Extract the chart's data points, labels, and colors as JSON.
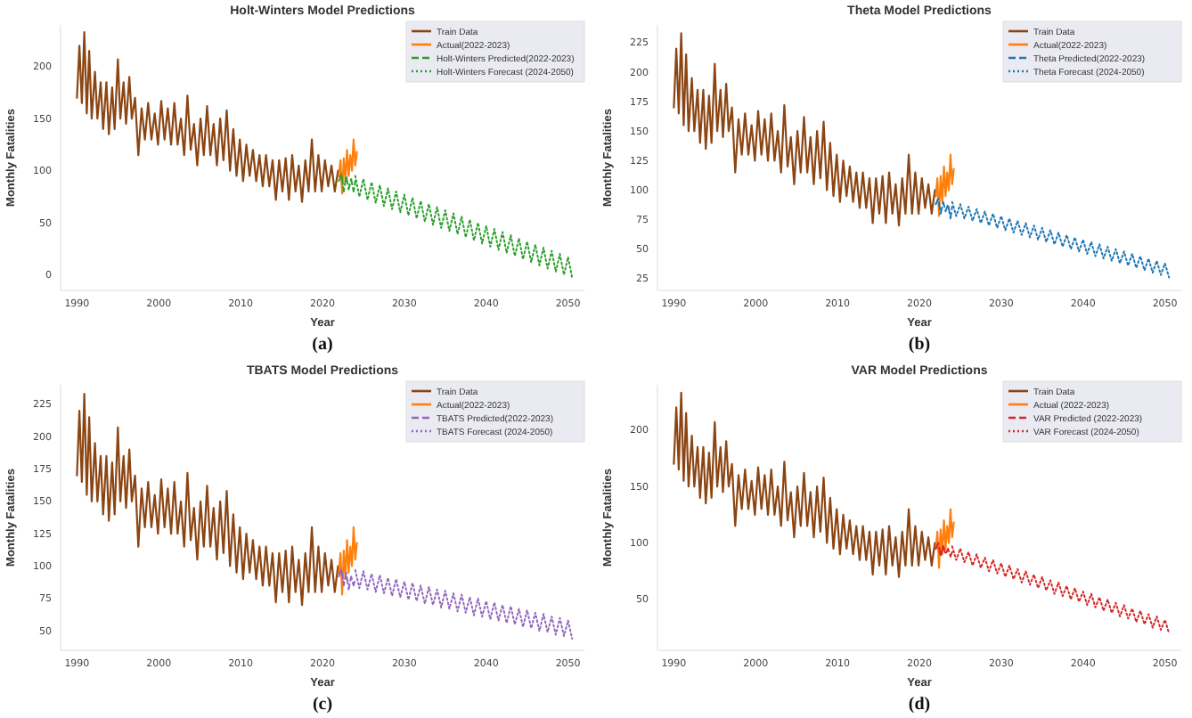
{
  "chart_data": [
    {
      "type": "line",
      "title": "Holt-Winters Model Predictions",
      "xlabel": "Year",
      "ylabel": "Monthly Fatalities",
      "annotations": [
        "(a)"
      ],
      "legend": "top right",
      "xlim": [
        1988,
        2052
      ],
      "xticks": [
        1990,
        2000,
        2010,
        2020,
        2030,
        2040,
        2050
      ],
      "ylim": [
        -15,
        240
      ],
      "yticks": [
        0,
        50,
        100,
        150,
        200
      ],
      "series": [
        {
          "name": "Train Data",
          "color": "#8b4513",
          "line_style": "solid",
          "x": [
            1990.0,
            1990.3,
            1990.6,
            1990.9,
            1991.2,
            1991.5,
            1991.8,
            1992.2,
            1992.5,
            1992.9,
            1993.2,
            1993.6,
            1993.9,
            1994.3,
            1994.6,
            1995.0,
            1995.3,
            1995.7,
            1996.0,
            1996.4,
            1996.7,
            1997.1,
            1997.5,
            1997.9,
            1998.3,
            1998.7,
            1999.1,
            1999.5,
            1999.9,
            2000.3,
            2000.7,
            2001.1,
            2001.5,
            2001.9,
            2002.3,
            2002.7,
            2003.1,
            2003.5,
            2003.9,
            2004.3,
            2004.7,
            2005.1,
            2005.5,
            2005.9,
            2006.3,
            2006.7,
            2007.1,
            2007.5,
            2007.9,
            2008.3,
            2008.7,
            2009.1,
            2009.5,
            2009.9,
            2010.3,
            2010.7,
            2011.1,
            2011.5,
            2011.9,
            2012.3,
            2012.7,
            2013.1,
            2013.5,
            2013.9,
            2014.3,
            2014.7,
            2015.1,
            2015.5,
            2015.9,
            2016.3,
            2016.7,
            2017.1,
            2017.5,
            2017.9,
            2018.3,
            2018.7,
            2019.1,
            2019.5,
            2019.9,
            2020.3,
            2020.7,
            2021.1,
            2021.5,
            2021.9,
            2022.0
          ],
          "values": [
            170,
            220,
            165,
            233,
            155,
            215,
            150,
            195,
            150,
            185,
            140,
            185,
            135,
            180,
            140,
            207,
            150,
            185,
            145,
            190,
            150,
            170,
            115,
            160,
            130,
            165,
            130,
            155,
            125,
            167,
            130,
            160,
            125,
            165,
            125,
            150,
            115,
            172,
            120,
            145,
            105,
            150,
            115,
            162,
            115,
            145,
            105,
            150,
            110,
            158,
            100,
            140,
            95,
            130,
            90,
            125,
            95,
            120,
            90,
            115,
            85,
            115,
            85,
            110,
            72,
            110,
            80,
            112,
            72,
            115,
            80,
            105,
            70,
            110,
            80,
            130,
            80,
            115,
            80,
            110,
            85,
            105,
            80,
            100,
            95
          ]
        },
        {
          "name": "Actual(2022-2023)",
          "color": "#ff7f0e",
          "line_style": "solid",
          "x": [
            2022.0,
            2022.2,
            2022.4,
            2022.6,
            2022.8,
            2023.0,
            2023.2,
            2023.4,
            2023.6,
            2023.8,
            2024.0,
            2024.2
          ],
          "values": [
            95,
            110,
            78,
            112,
            90,
            120,
            95,
            115,
            100,
            130,
            105,
            118
          ]
        },
        {
          "name": "Holt-Winters Predicted(2022-2023)",
          "color": "#2ca02c",
          "line_style": "dashed",
          "x": [
            2022.0,
            2022.3,
            2022.6,
            2022.9,
            2023.2,
            2023.5,
            2023.8,
            2024.0
          ],
          "values": [
            90,
            97,
            80,
            95,
            82,
            92,
            80,
            90
          ]
        },
        {
          "name": "Holt-Winters Forecast (2024-2050)",
          "color": "#2ca02c",
          "line_style": "dotted",
          "x": [
            2024,
            2024.5,
            2025,
            2025.5,
            2026,
            2026.5,
            2027,
            2027.5,
            2028,
            2028.5,
            2029,
            2029.5,
            2030,
            2030.5,
            2031,
            2031.5,
            2032,
            2032.5,
            2033,
            2033.5,
            2034,
            2034.5,
            2035,
            2035.5,
            2036,
            2036.5,
            2037,
            2037.5,
            2038,
            2038.5,
            2039,
            2039.5,
            2040,
            2040.5,
            2041,
            2041.5,
            2042,
            2042.5,
            2043,
            2043.5,
            2044,
            2044.5,
            2045,
            2045.5,
            2046,
            2046.5,
            2047,
            2047.5,
            2048,
            2048.5,
            2049,
            2049.5,
            2050,
            2050.5
          ],
          "values": [
            95,
            75,
            92,
            72,
            89,
            69,
            86,
            66,
            83,
            63,
            80,
            60,
            77,
            57,
            74,
            54,
            71,
            51,
            68,
            48,
            65,
            45,
            62,
            42,
            59,
            39,
            56,
            36,
            53,
            33,
            50,
            30,
            47,
            27,
            44,
            24,
            41,
            21,
            38,
            18,
            35,
            15,
            32,
            12,
            29,
            9,
            26,
            6,
            23,
            3,
            20,
            0,
            17,
            -3
          ]
        }
      ]
    },
    {
      "type": "line",
      "title": "Theta Model Predictions",
      "xlabel": "Year",
      "ylabel": "Monthly Fatalities",
      "annotations": [
        "(b)"
      ],
      "legend": "top right",
      "xlim": [
        1988,
        2052
      ],
      "xticks": [
        1990,
        2000,
        2010,
        2020,
        2030,
        2040,
        2050
      ],
      "ylim": [
        15,
        240
      ],
      "yticks": [
        25,
        50,
        75,
        100,
        125,
        150,
        175,
        200,
        225
      ],
      "series": [
        {
          "name": "Train Data",
          "color": "#8b4513",
          "line_style": "solid",
          "x": [
            1990.0,
            1990.3,
            1990.6,
            1990.9,
            1991.2,
            1991.5,
            1991.8,
            1992.2,
            1992.5,
            1992.9,
            1993.2,
            1993.6,
            1993.9,
            1994.3,
            1994.6,
            1995.0,
            1995.3,
            1995.7,
            1996.0,
            1996.4,
            1996.7,
            1997.1,
            1997.5,
            1997.9,
            1998.3,
            1998.7,
            1999.1,
            1999.5,
            1999.9,
            2000.3,
            2000.7,
            2001.1,
            2001.5,
            2001.9,
            2002.3,
            2002.7,
            2003.1,
            2003.5,
            2003.9,
            2004.3,
            2004.7,
            2005.1,
            2005.5,
            2005.9,
            2006.3,
            2006.7,
            2007.1,
            2007.5,
            2007.9,
            2008.3,
            2008.7,
            2009.1,
            2009.5,
            2009.9,
            2010.3,
            2010.7,
            2011.1,
            2011.5,
            2011.9,
            2012.3,
            2012.7,
            2013.1,
            2013.5,
            2013.9,
            2014.3,
            2014.7,
            2015.1,
            2015.5,
            2015.9,
            2016.3,
            2016.7,
            2017.1,
            2017.5,
            2017.9,
            2018.3,
            2018.7,
            2019.1,
            2019.5,
            2019.9,
            2020.3,
            2020.7,
            2021.1,
            2021.5,
            2021.9,
            2022.0
          ],
          "values": [
            170,
            220,
            165,
            233,
            155,
            215,
            150,
            195,
            150,
            185,
            140,
            185,
            135,
            180,
            140,
            207,
            150,
            185,
            145,
            190,
            150,
            170,
            115,
            160,
            130,
            165,
            130,
            155,
            125,
            167,
            130,
            160,
            125,
            165,
            125,
            150,
            115,
            172,
            120,
            145,
            105,
            150,
            115,
            162,
            115,
            145,
            105,
            150,
            110,
            158,
            100,
            140,
            95,
            130,
            90,
            125,
            95,
            120,
            90,
            115,
            85,
            115,
            85,
            110,
            72,
            110,
            80,
            112,
            72,
            115,
            80,
            105,
            70,
            110,
            80,
            130,
            80,
            115,
            80,
            110,
            85,
            105,
            80,
            100,
            95
          ]
        },
        {
          "name": "Actual(2022-2023)",
          "color": "#ff7f0e",
          "line_style": "solid",
          "x": [
            2022.0,
            2022.2,
            2022.4,
            2022.6,
            2022.8,
            2023.0,
            2023.2,
            2023.4,
            2023.6,
            2023.8,
            2024.0,
            2024.2
          ],
          "values": [
            95,
            110,
            78,
            112,
            90,
            120,
            95,
            115,
            100,
            130,
            105,
            118
          ]
        },
        {
          "name": "Theta Predicted(2022-2023)",
          "color": "#1f77b4",
          "line_style": "dashed",
          "x": [
            2022.0,
            2022.3,
            2022.6,
            2022.9,
            2023.2,
            2023.5,
            2023.8,
            2024.0
          ],
          "values": [
            88,
            93,
            80,
            90,
            82,
            88,
            76,
            86
          ]
        },
        {
          "name": "Theta Forecast (2024-2050)",
          "color": "#1f77b4",
          "line_style": "dotted",
          "x": [
            2024,
            2024.5,
            2025,
            2025.5,
            2026,
            2026.5,
            2027,
            2027.5,
            2028,
            2028.5,
            2029,
            2029.5,
            2030,
            2030.5,
            2031,
            2031.5,
            2032,
            2032.5,
            2033,
            2033.5,
            2034,
            2034.5,
            2035,
            2035.5,
            2036,
            2036.5,
            2037,
            2037.5,
            2038,
            2038.5,
            2039,
            2039.5,
            2040,
            2040.5,
            2041,
            2041.5,
            2042,
            2042.5,
            2043,
            2043.5,
            2044,
            2044.5,
            2045,
            2045.5,
            2046,
            2046.5,
            2047,
            2047.5,
            2048,
            2048.5,
            2049,
            2049.5,
            2050,
            2050.5
          ],
          "values": [
            90,
            78,
            88,
            76,
            86,
            74,
            84,
            72,
            82,
            70,
            80,
            68,
            78,
            66,
            76,
            64,
            74,
            62,
            72,
            60,
            70,
            58,
            68,
            56,
            66,
            54,
            64,
            52,
            62,
            50,
            60,
            48,
            58,
            46,
            56,
            44,
            54,
            42,
            52,
            40,
            50,
            38,
            48,
            36,
            46,
            34,
            44,
            32,
            42,
            30,
            40,
            28,
            38,
            26
          ]
        }
      ]
    },
    {
      "type": "line",
      "title": "TBATS Model Predictions",
      "xlabel": "Year",
      "ylabel": "Monthly Fatalities",
      "annotations": [
        "(c)"
      ],
      "legend": "top right",
      "xlim": [
        1988,
        2052
      ],
      "xticks": [
        1990,
        2000,
        2010,
        2020,
        2030,
        2040,
        2050
      ],
      "ylim": [
        35,
        240
      ],
      "yticks": [
        50,
        75,
        100,
        125,
        150,
        175,
        200,
        225
      ],
      "series": [
        {
          "name": "Train Data",
          "color": "#8b4513",
          "line_style": "solid",
          "x": [
            1990.0,
            1990.3,
            1990.6,
            1990.9,
            1991.2,
            1991.5,
            1991.8,
            1992.2,
            1992.5,
            1992.9,
            1993.2,
            1993.6,
            1993.9,
            1994.3,
            1994.6,
            1995.0,
            1995.3,
            1995.7,
            1996.0,
            1996.4,
            1996.7,
            1997.1,
            1997.5,
            1997.9,
            1998.3,
            1998.7,
            1999.1,
            1999.5,
            1999.9,
            2000.3,
            2000.7,
            2001.1,
            2001.5,
            2001.9,
            2002.3,
            2002.7,
            2003.1,
            2003.5,
            2003.9,
            2004.3,
            2004.7,
            2005.1,
            2005.5,
            2005.9,
            2006.3,
            2006.7,
            2007.1,
            2007.5,
            2007.9,
            2008.3,
            2008.7,
            2009.1,
            2009.5,
            2009.9,
            2010.3,
            2010.7,
            2011.1,
            2011.5,
            2011.9,
            2012.3,
            2012.7,
            2013.1,
            2013.5,
            2013.9,
            2014.3,
            2014.7,
            2015.1,
            2015.5,
            2015.9,
            2016.3,
            2016.7,
            2017.1,
            2017.5,
            2017.9,
            2018.3,
            2018.7,
            2019.1,
            2019.5,
            2019.9,
            2020.3,
            2020.7,
            2021.1,
            2021.5,
            2021.9,
            2022.0
          ],
          "values": [
            170,
            220,
            165,
            233,
            155,
            215,
            150,
            195,
            150,
            185,
            140,
            185,
            135,
            180,
            140,
            207,
            150,
            185,
            145,
            190,
            150,
            170,
            115,
            160,
            130,
            165,
            130,
            155,
            125,
            167,
            130,
            160,
            125,
            165,
            125,
            150,
            115,
            172,
            120,
            145,
            105,
            150,
            115,
            162,
            115,
            145,
            105,
            150,
            110,
            158,
            100,
            140,
            95,
            130,
            90,
            125,
            95,
            120,
            90,
            115,
            85,
            115,
            85,
            110,
            72,
            110,
            80,
            112,
            72,
            115,
            80,
            105,
            70,
            110,
            80,
            130,
            80,
            115,
            80,
            110,
            85,
            105,
            80,
            100,
            95
          ]
        },
        {
          "name": "Actual(2022-2023)",
          "color": "#ff7f0e",
          "line_style": "solid",
          "x": [
            2022.0,
            2022.2,
            2022.4,
            2022.6,
            2022.8,
            2023.0,
            2023.2,
            2023.4,
            2023.6,
            2023.8,
            2024.0,
            2024.2
          ],
          "values": [
            95,
            110,
            78,
            112,
            90,
            120,
            95,
            115,
            100,
            130,
            105,
            118
          ]
        },
        {
          "name": "TBATS Predicted(2022-2023)",
          "color": "#9467bd",
          "line_style": "dashed",
          "x": [
            2022.0,
            2022.3,
            2022.6,
            2022.9,
            2023.2,
            2023.5,
            2023.8,
            2024.0
          ],
          "values": [
            92,
            98,
            85,
            95,
            82,
            92,
            85,
            90
          ]
        },
        {
          "name": "TBATS Forecast (2024-2050)",
          "color": "#9467bd",
          "line_style": "dotted",
          "x": [
            2024,
            2024.5,
            2025,
            2025.5,
            2026,
            2026.5,
            2027,
            2027.5,
            2028,
            2028.5,
            2029,
            2029.5,
            2030,
            2030.5,
            2031,
            2031.5,
            2032,
            2032.5,
            2033,
            2033.5,
            2034,
            2034.5,
            2035,
            2035.5,
            2036,
            2036.5,
            2037,
            2037.5,
            2038,
            2038.5,
            2039,
            2039.5,
            2040,
            2040.5,
            2041,
            2041.5,
            2042,
            2042.5,
            2043,
            2043.5,
            2044,
            2044.5,
            2045,
            2045.5,
            2046,
            2046.5,
            2047,
            2047.5,
            2048,
            2048.5,
            2049,
            2049.5,
            2050,
            2050.5
          ],
          "values": [
            97,
            83,
            96,
            82,
            94,
            80,
            93,
            79,
            91,
            77,
            90,
            76,
            88,
            74,
            87,
            73,
            85,
            71,
            84,
            70,
            82,
            68,
            81,
            67,
            79,
            65,
            78,
            64,
            76,
            62,
            75,
            61,
            73,
            59,
            72,
            58,
            70,
            56,
            69,
            55,
            67,
            53,
            66,
            52,
            64,
            50,
            63,
            49,
            61,
            47,
            60,
            46,
            58,
            44
          ]
        }
      ]
    },
    {
      "type": "line",
      "title": "VAR Model Predictions",
      "xlabel": "Year",
      "ylabel": "Monthly Fatalities",
      "annotations": [
        "(d)"
      ],
      "legend": "top right",
      "xlim": [
        1988,
        2052
      ],
      "xticks": [
        1990,
        2000,
        2010,
        2020,
        2030,
        2040,
        2050
      ],
      "ylim": [
        5,
        240
      ],
      "yticks": [
        50,
        100,
        150,
        200
      ],
      "series": [
        {
          "name": "Train Data",
          "color": "#8b4513",
          "line_style": "solid",
          "x": [
            1990.0,
            1990.3,
            1990.6,
            1990.9,
            1991.2,
            1991.5,
            1991.8,
            1992.2,
            1992.5,
            1992.9,
            1993.2,
            1993.6,
            1993.9,
            1994.3,
            1994.6,
            1995.0,
            1995.3,
            1995.7,
            1996.0,
            1996.4,
            1996.7,
            1997.1,
            1997.5,
            1997.9,
            1998.3,
            1998.7,
            1999.1,
            1999.5,
            1999.9,
            2000.3,
            2000.7,
            2001.1,
            2001.5,
            2001.9,
            2002.3,
            2002.7,
            2003.1,
            2003.5,
            2003.9,
            2004.3,
            2004.7,
            2005.1,
            2005.5,
            2005.9,
            2006.3,
            2006.7,
            2007.1,
            2007.5,
            2007.9,
            2008.3,
            2008.7,
            2009.1,
            2009.5,
            2009.9,
            2010.3,
            2010.7,
            2011.1,
            2011.5,
            2011.9,
            2012.3,
            2012.7,
            2013.1,
            2013.5,
            2013.9,
            2014.3,
            2014.7,
            2015.1,
            2015.5,
            2015.9,
            2016.3,
            2016.7,
            2017.1,
            2017.5,
            2017.9,
            2018.3,
            2018.7,
            2019.1,
            2019.5,
            2019.9,
            2020.3,
            2020.7,
            2021.1,
            2021.5,
            2021.9,
            2022.0
          ],
          "values": [
            170,
            220,
            165,
            233,
            155,
            215,
            150,
            195,
            150,
            185,
            140,
            185,
            135,
            180,
            140,
            207,
            150,
            185,
            145,
            190,
            150,
            170,
            115,
            160,
            130,
            165,
            130,
            155,
            125,
            167,
            130,
            160,
            125,
            165,
            125,
            150,
            115,
            172,
            120,
            145,
            105,
            150,
            115,
            162,
            115,
            145,
            105,
            150,
            110,
            158,
            100,
            140,
            95,
            130,
            90,
            125,
            95,
            120,
            90,
            115,
            85,
            115,
            85,
            110,
            72,
            110,
            80,
            112,
            72,
            115,
            80,
            105,
            70,
            110,
            80,
            130,
            80,
            115,
            80,
            110,
            85,
            105,
            80,
            100,
            95
          ]
        },
        {
          "name": "Actual (2022-2023)",
          "color": "#ff7f0e",
          "line_style": "solid",
          "x": [
            2022.0,
            2022.2,
            2022.4,
            2022.6,
            2022.8,
            2023.0,
            2023.2,
            2023.4,
            2023.6,
            2023.8,
            2024.0,
            2024.2
          ],
          "values": [
            95,
            110,
            78,
            112,
            90,
            120,
            95,
            115,
            100,
            130,
            105,
            118
          ]
        },
        {
          "name": "VAR Predicted (2022-2023)",
          "color": "#d62728",
          "line_style": "dashed",
          "x": [
            2022.0,
            2022.3,
            2022.6,
            2022.9,
            2023.2,
            2023.5,
            2023.8,
            2024.0
          ],
          "values": [
            95,
            100,
            88,
            98,
            90,
            95,
            88,
            92
          ]
        },
        {
          "name": "VAR Forecast (2024-2050)",
          "color": "#d62728",
          "line_style": "dotted",
          "x": [
            2024,
            2024.5,
            2025,
            2025.5,
            2026,
            2026.5,
            2027,
            2027.5,
            2028,
            2028.5,
            2029,
            2029.5,
            2030,
            2030.5,
            2031,
            2031.5,
            2032,
            2032.5,
            2033,
            2033.5,
            2034,
            2034.5,
            2035,
            2035.5,
            2036,
            2036.5,
            2037,
            2037.5,
            2038,
            2038.5,
            2039,
            2039.5,
            2040,
            2040.5,
            2041,
            2041.5,
            2042,
            2042.5,
            2043,
            2043.5,
            2044,
            2044.5,
            2045,
            2045.5,
            2046,
            2046.5,
            2047,
            2047.5,
            2048,
            2048.5,
            2049,
            2049.5,
            2050,
            2050.5
          ],
          "values": [
            97,
            85,
            95,
            83,
            92,
            80,
            90,
            78,
            87,
            75,
            85,
            73,
            82,
            70,
            80,
            68,
            77,
            65,
            75,
            63,
            72,
            60,
            70,
            58,
            67,
            55,
            65,
            53,
            62,
            50,
            60,
            48,
            57,
            45,
            55,
            43,
            52,
            40,
            50,
            38,
            47,
            35,
            45,
            33,
            42,
            30,
            40,
            28,
            37,
            25,
            35,
            23,
            32,
            20
          ]
        }
      ]
    }
  ]
}
